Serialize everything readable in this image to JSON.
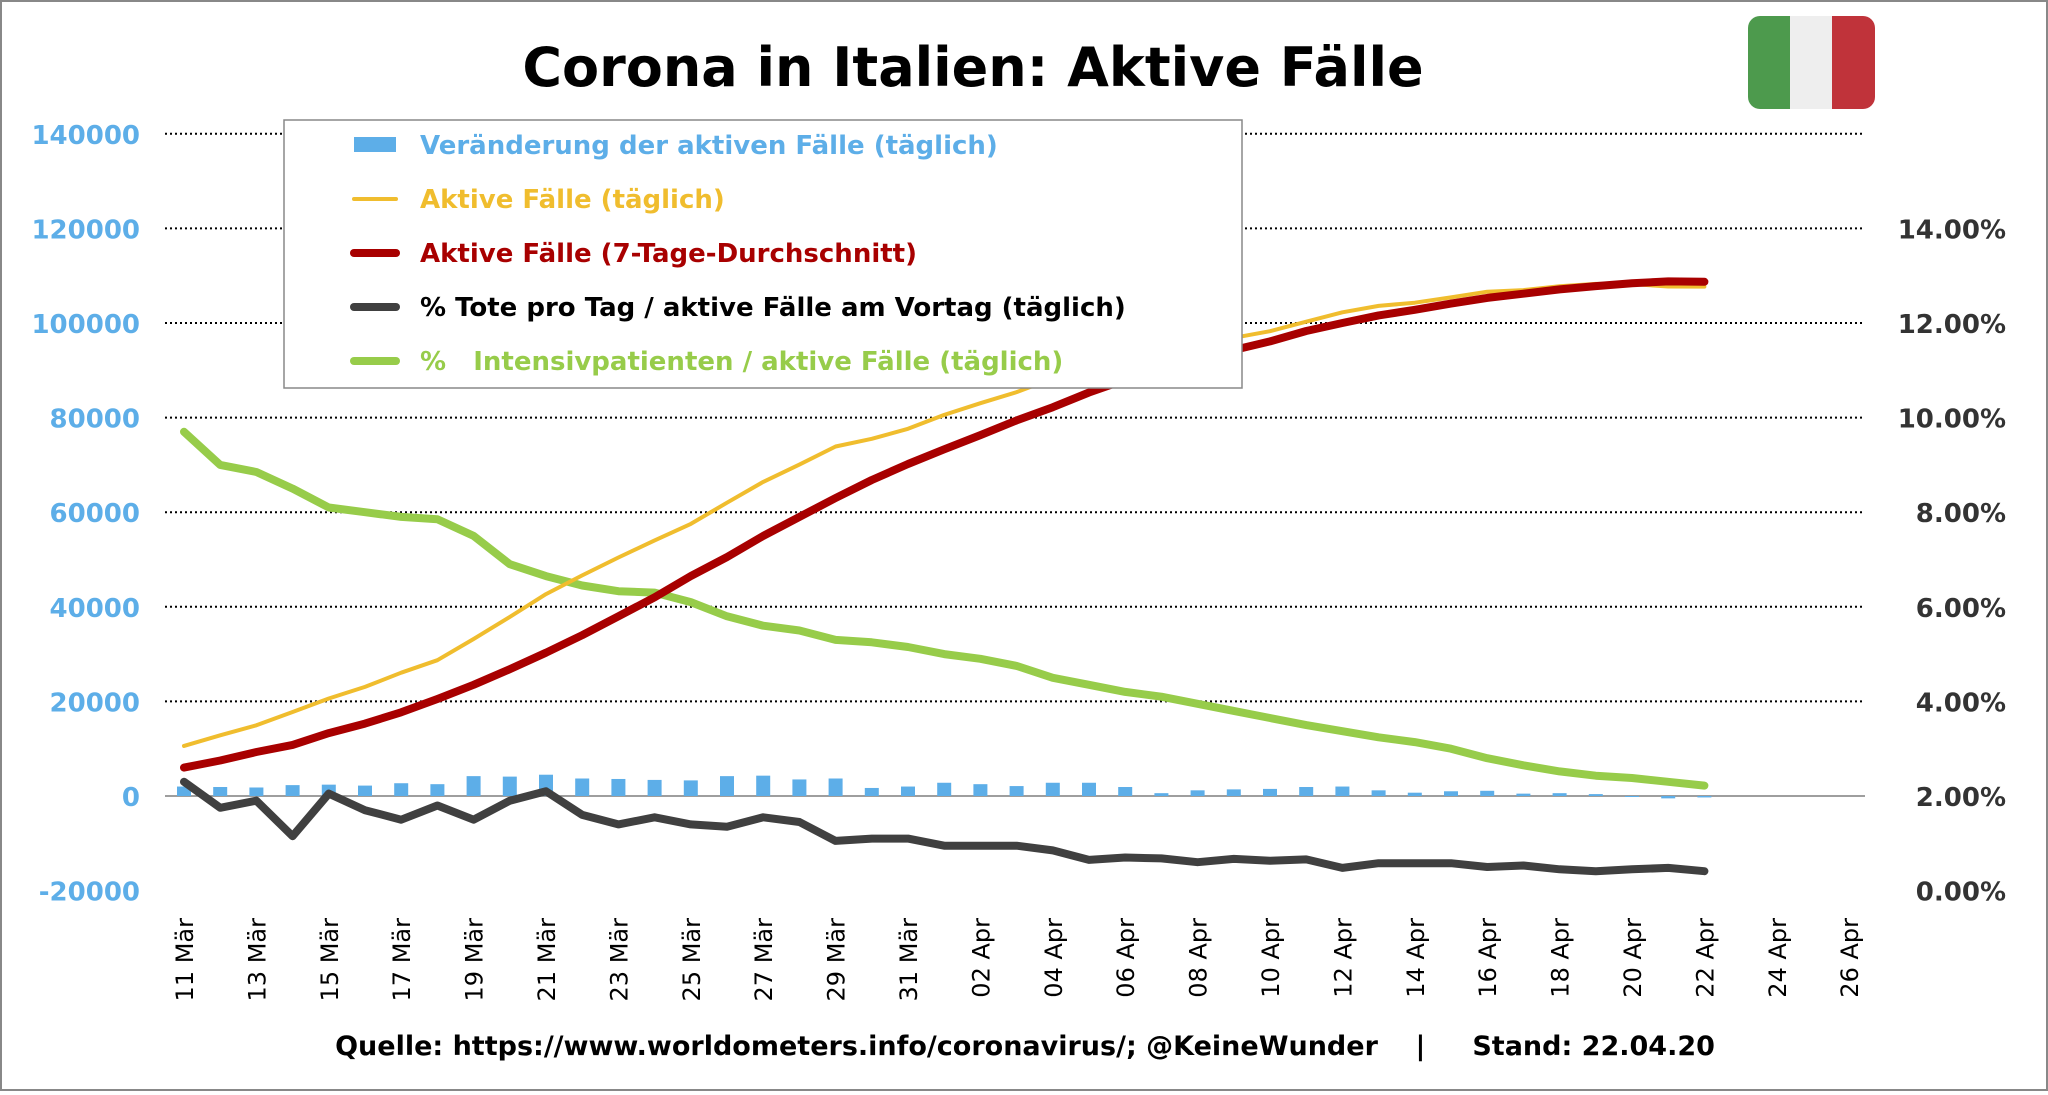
{
  "chart_data": {
    "type": "bar+line",
    "title": "Corona in Italien: Aktive Fälle",
    "source_text": "Quelle: https://www.worldometers.info/coronavirus/; @KeineWunder    |     Stand: 22.04.20",
    "colors": {
      "bars": "#5daee8",
      "active_daily": "#f0bd2e",
      "active_7day": "#a80000",
      "deaths_pct": "#404040",
      "icu_pct": "#97cc4a",
      "left_axis_text": "#5daee8",
      "right_axis_text": "#333333",
      "flag": [
        "#4d9a4d",
        "#eeeeee",
        "#c0333a"
      ]
    },
    "y_left": {
      "min": -20000,
      "max": 140000,
      "ticks": [
        "-20000",
        "0",
        "20000",
        "40000",
        "60000",
        "80000",
        "100000",
        "120000",
        "140000"
      ]
    },
    "y_right": {
      "min": 0,
      "max": 14,
      "ticks": [
        "0.00%",
        "2.00%",
        "4.00%",
        "6.00%",
        "8.00%",
        "10.00%",
        "12.00%",
        "14.00%"
      ]
    },
    "grid": "dotted horizontal",
    "legend_position": "top-left",
    "x_tick_labels": [
      "11 Mär",
      "13 Mär",
      "15 Mär",
      "17 Mär",
      "19 Mär",
      "21 Mär",
      "23 Mär",
      "25 Mär",
      "27 Mär",
      "29 Mär",
      "31 Mär",
      "02 Apr",
      "04 Apr",
      "06 Apr",
      "08 Apr",
      "10 Apr",
      "12 Apr",
      "14 Apr",
      "16 Apr",
      "18 Apr",
      "20 Apr",
      "22 Apr",
      "24 Apr",
      "26 Apr"
    ],
    "x_range_days": 47,
    "series": [
      {
        "name": "Veränderung der aktiven Fälle (täglich)",
        "kind": "bar",
        "axis": "left",
        "values": [
          2000,
          1900,
          1800,
          2300,
          2400,
          2200,
          2700,
          2500,
          4200,
          4100,
          4500,
          3700,
          3600,
          3400,
          3300,
          4200,
          4300,
          3500,
          3700,
          1700,
          2000,
          2800,
          2500,
          2100,
          2800,
          2800,
          1900,
          600,
          1200,
          1400,
          1500,
          1900,
          2000,
          1200,
          700,
          1000,
          1100,
          500,
          600,
          400,
          -100,
          -500,
          -300
        ]
      },
      {
        "name": "Aktive Fälle (täglich)",
        "kind": "line",
        "axis": "left",
        "values": [
          10590,
          12839,
          14955,
          17750,
          20603,
          23073,
          26062,
          28710,
          33190,
          37860,
          42681,
          46638,
          50418,
          54030,
          57521,
          62013,
          66414,
          70065,
          73880,
          75528,
          77635,
          80572,
          83049,
          85388,
          88274,
          91246,
          93187,
          94067,
          95262,
          96877,
          98273,
          100269,
          102253,
          103616,
          104291,
          105418,
          106607,
          106962,
          107771,
          108257,
          108237,
          107709,
          107699
        ]
      },
      {
        "name": "Aktive Fälle (7-Tage-Durchschnitt)",
        "kind": "line",
        "axis": "left",
        "values": [
          6000,
          7500,
          9300,
          10800,
          13300,
          15300,
          17700,
          20500,
          23500,
          26800,
          30300,
          34000,
          38000,
          42000,
          46500,
          50500,
          55000,
          59000,
          63000,
          66800,
          70200,
          73300,
          76300,
          79400,
          82200,
          85300,
          88000,
          90200,
          92500,
          94300,
          96100,
          98300,
          100000,
          101600,
          102800,
          104100,
          105300,
          106200,
          107100,
          107800,
          108400,
          108800,
          108700
        ]
      },
      {
        "name": "% Tote pro Tag / aktive Fälle am Vortag (täglich)",
        "kind": "line",
        "axis": "right",
        "values": [
          2.3,
          1.75,
          1.9,
          1.15,
          2.05,
          1.7,
          1.5,
          1.8,
          1.5,
          1.9,
          2.1,
          1.6,
          1.4,
          1.55,
          1.4,
          1.35,
          1.55,
          1.45,
          1.05,
          1.1,
          1.1,
          0.95,
          0.95,
          0.95,
          0.85,
          0.65,
          0.7,
          0.68,
          0.6,
          0.67,
          0.63,
          0.66,
          0.48,
          0.58,
          0.58,
          0.58,
          0.5,
          0.53,
          0.45,
          0.41,
          0.45,
          0.48,
          0.41
        ]
      },
      {
        "name": "%   Intensivpatienten / aktive Fälle (täglich)",
        "kind": "line",
        "axis": "right",
        "values": [
          9.7,
          9.0,
          8.85,
          8.5,
          8.1,
          8.0,
          7.9,
          7.85,
          7.5,
          6.9,
          6.65,
          6.45,
          6.33,
          6.3,
          6.1,
          5.8,
          5.6,
          5.5,
          5.3,
          5.25,
          5.15,
          5.0,
          4.9,
          4.75,
          4.5,
          4.35,
          4.2,
          4.1,
          3.95,
          3.8,
          3.65,
          3.5,
          3.37,
          3.24,
          3.14,
          3.0,
          2.8,
          2.65,
          2.52,
          2.43,
          2.38,
          2.3,
          2.22
        ]
      }
    ]
  }
}
